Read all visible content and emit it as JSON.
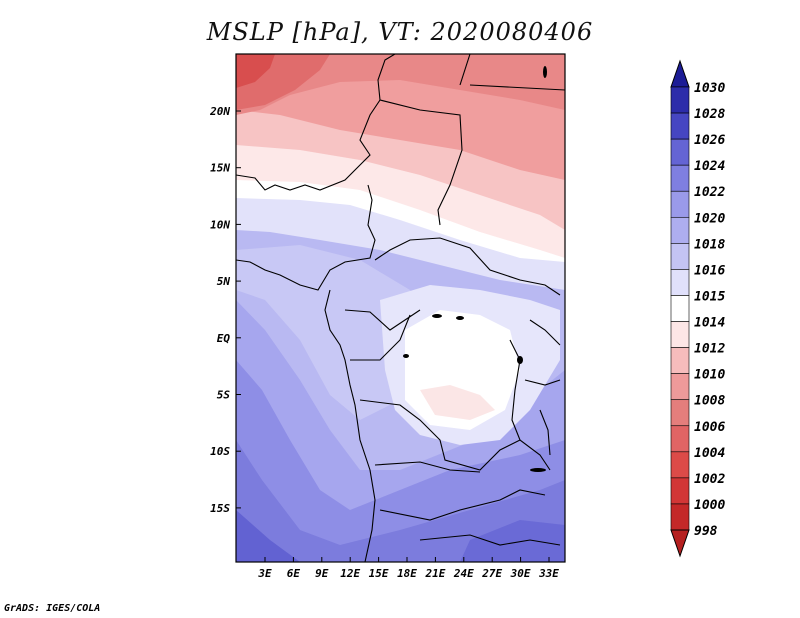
{
  "title": "MSLP [hPa], VT: 2020080406",
  "footer": "GrADS: IGES/COLA",
  "map": {
    "type": "filled-contour-map",
    "variable": "MSLP",
    "units": "hPa",
    "valid_time": "2020080406",
    "lon_labels": [
      "3E",
      "6E",
      "9E",
      "12E",
      "15E",
      "18E",
      "21E",
      "24E",
      "27E",
      "30E",
      "33E"
    ],
    "lat_labels": [
      "20N",
      "15N",
      "10N",
      "5N",
      "EQ",
      "5S",
      "10S",
      "15S"
    ]
  },
  "colorbar": {
    "levels": [
      "998",
      "1000",
      "1002",
      "1004",
      "1006",
      "1008",
      "1010",
      "1012",
      "1014",
      "1015",
      "1016",
      "1018",
      "1020",
      "1022",
      "1024",
      "1026",
      "1028",
      "1030"
    ],
    "colors": [
      "#b52020",
      "#c42828",
      "#d23636",
      "#dc4b48",
      "#e06464",
      "#e47e7c",
      "#ee9a9a",
      "#f6bcbc",
      "#fde6e6",
      "#ffffff",
      "#e0e0fb",
      "#c4c4f4",
      "#aeaef0",
      "#9a9aea",
      "#7f7fe0",
      "#6464d4",
      "#4646c2",
      "#2c2caa",
      "#1c1c96"
    ],
    "arrow_bottom_color": "#b52020",
    "arrow_top_color": "#1c1c96"
  }
}
